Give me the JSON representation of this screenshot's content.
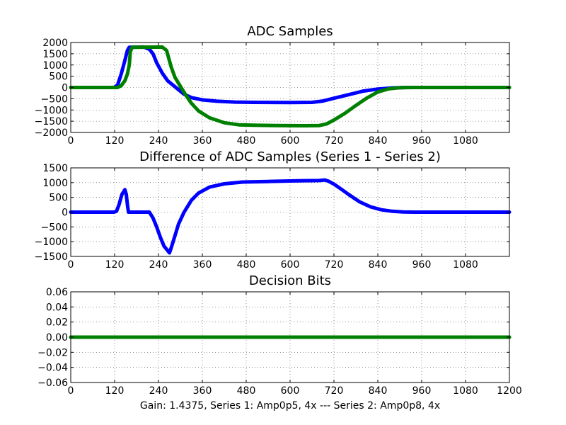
{
  "caption": "Gain: 1.4375, Series 1: Amp0p5, 4x --- Series 2: Amp0p8, 4x",
  "chart_data": [
    {
      "type": "scatter",
      "title": "ADC Samples",
      "xlim": [
        0,
        1200
      ],
      "ylim": [
        -2000,
        2000
      ],
      "xticks": [
        0,
        120,
        240,
        360,
        480,
        600,
        720,
        840,
        960,
        1080
      ],
      "yticks": [
        2000,
        1500,
        1000,
        500,
        0,
        -500,
        -1000,
        -1500,
        -2000
      ],
      "grid": true,
      "series": [
        {
          "color": "#0000ff",
          "points": [
            [
              0,
              0
            ],
            [
              118,
              0
            ],
            [
              128,
              100
            ],
            [
              138,
              600
            ],
            [
              148,
              1200
            ],
            [
              155,
              1650
            ],
            [
              160,
              1790
            ],
            [
              200,
              1800
            ],
            [
              215,
              1700
            ],
            [
              225,
              1500
            ],
            [
              235,
              1100
            ],
            [
              250,
              650
            ],
            [
              265,
              300
            ],
            [
              280,
              100
            ],
            [
              295,
              -100
            ],
            [
              310,
              -300
            ],
            [
              330,
              -450
            ],
            [
              360,
              -550
            ],
            [
              400,
              -610
            ],
            [
              450,
              -650
            ],
            [
              500,
              -660
            ],
            [
              600,
              -670
            ],
            [
              660,
              -660
            ],
            [
              690,
              -600
            ],
            [
              720,
              -480
            ],
            [
              760,
              -320
            ],
            [
              800,
              -160
            ],
            [
              840,
              -70
            ],
            [
              880,
              -20
            ],
            [
              920,
              0
            ],
            [
              1200,
              0
            ]
          ]
        },
        {
          "color": "#008000",
          "points": [
            [
              0,
              0
            ],
            [
              128,
              0
            ],
            [
              138,
              80
            ],
            [
              148,
              300
            ],
            [
              155,
              600
            ],
            [
              160,
              1000
            ],
            [
              163,
              1600
            ],
            [
              168,
              1790
            ],
            [
              250,
              1800
            ],
            [
              262,
              1650
            ],
            [
              268,
              1300
            ],
            [
              275,
              900
            ],
            [
              285,
              450
            ],
            [
              300,
              50
            ],
            [
              315,
              -350
            ],
            [
              330,
              -700
            ],
            [
              350,
              -1050
            ],
            [
              380,
              -1350
            ],
            [
              420,
              -1570
            ],
            [
              460,
              -1660
            ],
            [
              500,
              -1680
            ],
            [
              560,
              -1690
            ],
            [
              640,
              -1700
            ],
            [
              680,
              -1690
            ],
            [
              700,
              -1620
            ],
            [
              720,
              -1450
            ],
            [
              750,
              -1150
            ],
            [
              780,
              -800
            ],
            [
              810,
              -470
            ],
            [
              840,
              -200
            ],
            [
              870,
              -60
            ],
            [
              900,
              -10
            ],
            [
              940,
              0
            ],
            [
              1200,
              0
            ]
          ]
        }
      ]
    },
    {
      "type": "scatter",
      "title": "Difference of ADC Samples (Series 1 - Series 2)",
      "xlim": [
        0,
        1200
      ],
      "ylim": [
        -1500,
        1500
      ],
      "xticks": [
        0,
        120,
        240,
        360,
        480,
        600,
        720,
        840,
        960,
        1080
      ],
      "yticks": [
        1500,
        1000,
        500,
        0,
        -500,
        -1000,
        -1500
      ],
      "grid": true,
      "series": [
        {
          "color": "#0000ff",
          "points": [
            [
              0,
              0
            ],
            [
              118,
              0
            ],
            [
              125,
              30
            ],
            [
              132,
              250
            ],
            [
              140,
              600
            ],
            [
              148,
              760
            ],
            [
              152,
              600
            ],
            [
              155,
              250
            ],
            [
              158,
              0
            ],
            [
              215,
              0
            ],
            [
              225,
              -200
            ],
            [
              235,
              -500
            ],
            [
              245,
              -850
            ],
            [
              255,
              -1150
            ],
            [
              265,
              -1300
            ],
            [
              270,
              -1380
            ],
            [
              275,
              -1200
            ],
            [
              285,
              -800
            ],
            [
              295,
              -400
            ],
            [
              310,
              0
            ],
            [
              330,
              400
            ],
            [
              350,
              650
            ],
            [
              380,
              850
            ],
            [
              420,
              960
            ],
            [
              470,
              1020
            ],
            [
              540,
              1040
            ],
            [
              620,
              1060
            ],
            [
              680,
              1070
            ],
            [
              695,
              1090
            ],
            [
              705,
              1050
            ],
            [
              720,
              950
            ],
            [
              740,
              780
            ],
            [
              760,
              600
            ],
            [
              790,
              350
            ],
            [
              820,
              180
            ],
            [
              850,
              80
            ],
            [
              880,
              30
            ],
            [
              910,
              5
            ],
            [
              940,
              0
            ],
            [
              1200,
              0
            ]
          ]
        }
      ]
    },
    {
      "type": "scatter",
      "title": "Decision Bits",
      "xlim": [
        0,
        1200
      ],
      "ylim": [
        -0.06,
        0.06
      ],
      "xticks": [
        0,
        120,
        240,
        360,
        480,
        600,
        720,
        840,
        960,
        1080,
        1200
      ],
      "yticks": [
        0.06,
        0.04,
        0.02,
        0.0,
        -0.02,
        -0.04,
        -0.06
      ],
      "grid": true,
      "series": [
        {
          "color": "#0000ff",
          "points": [
            [
              0,
              0
            ],
            [
              1200,
              0
            ]
          ]
        },
        {
          "color": "#008000",
          "points": [
            [
              0,
              0
            ],
            [
              1200,
              0
            ]
          ]
        }
      ]
    }
  ]
}
